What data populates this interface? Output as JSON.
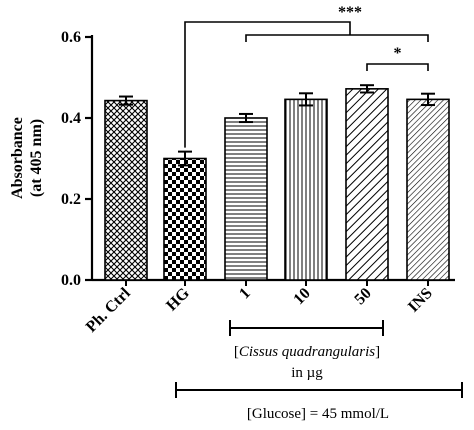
{
  "chart_data": {
    "type": "bar",
    "title": "",
    "ylabel_line1": "Absorbance",
    "ylabel_line2": "(at 405 nm)",
    "ylim": [
      0,
      0.6
    ],
    "yticks": [
      "0.0",
      "0.2",
      "0.4",
      "0.6"
    ],
    "categories": [
      "Ph. Ctrl",
      "HG",
      "1",
      "10",
      "50",
      "INS"
    ],
    "values": [
      0.443,
      0.3,
      0.4,
      0.446,
      0.472,
      0.446
    ],
    "errors": [
      0.01,
      0.017,
      0.01,
      0.015,
      0.009,
      0.014
    ],
    "patterns": [
      "crosshatch",
      "checker",
      "horizontal",
      "vertical",
      "diagonal",
      "diagonal-dense"
    ],
    "significance": [
      {
        "label": "***",
        "from": "HG",
        "to": "1-INS"
      },
      {
        "label": "*",
        "from": "50",
        "to": "INS"
      }
    ],
    "groups": [
      {
        "label_italic": "Cissus quadrangularis",
        "label_open": "[",
        "label_close": "]",
        "label_line2": "in µg",
        "covers": [
          "1",
          "10",
          "50"
        ]
      },
      {
        "label": "[Glucose] = 45 mmol/L",
        "covers": [
          "HG",
          "1",
          "10",
          "50",
          "INS"
        ]
      }
    ],
    "grid": false,
    "legend": "none"
  }
}
